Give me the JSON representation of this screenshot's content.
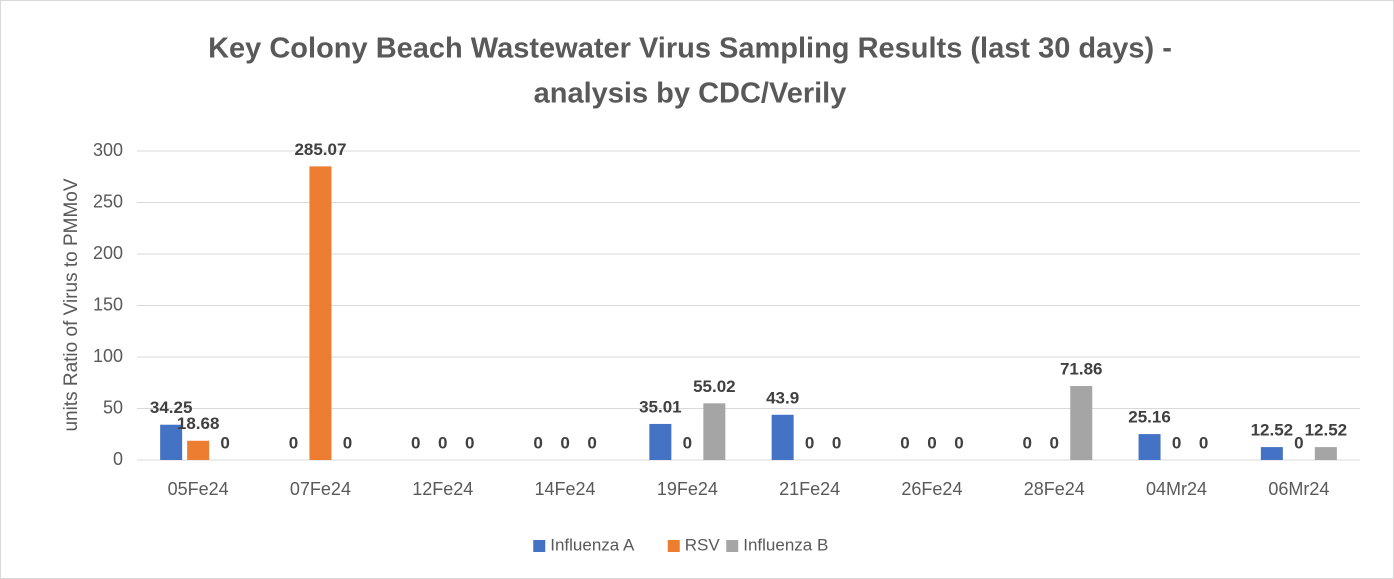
{
  "chart_data": {
    "type": "bar",
    "title": [
      "Key Colony Beach Wastewater Virus Sampling Results (last 30 days) -",
      "analysis by CDC/Verily"
    ],
    "y_label": "units Ratio of Virus to PMMoV",
    "categories": [
      "05Fe24",
      "07Fe24",
      "12Fe24",
      "14Fe24",
      "19Fe24",
      "21Fe24",
      "26Fe24",
      "28Fe24",
      "04Mr24",
      "06Mr24"
    ],
    "series": [
      {
        "name": "Influenza A",
        "color": "#4472c4",
        "values": [
          34.25,
          0,
          0,
          0,
          35.01,
          43.9,
          0,
          0,
          25.16,
          12.52
        ]
      },
      {
        "name": "RSV",
        "color": "#ed7d31",
        "values": [
          18.68,
          285.07,
          0,
          0,
          0,
          0,
          0,
          0,
          0,
          0
        ]
      },
      {
        "name": "Influenza B",
        "color": "#a5a5a5",
        "values": [
          0,
          0,
          0,
          0,
          55.02,
          0,
          0,
          71.86,
          0,
          12.52
        ]
      }
    ],
    "ylim": [
      0,
      300
    ],
    "yticks": [
      0,
      50,
      100,
      150,
      200,
      250,
      300
    ],
    "grid": true,
    "legend": "bottom"
  }
}
